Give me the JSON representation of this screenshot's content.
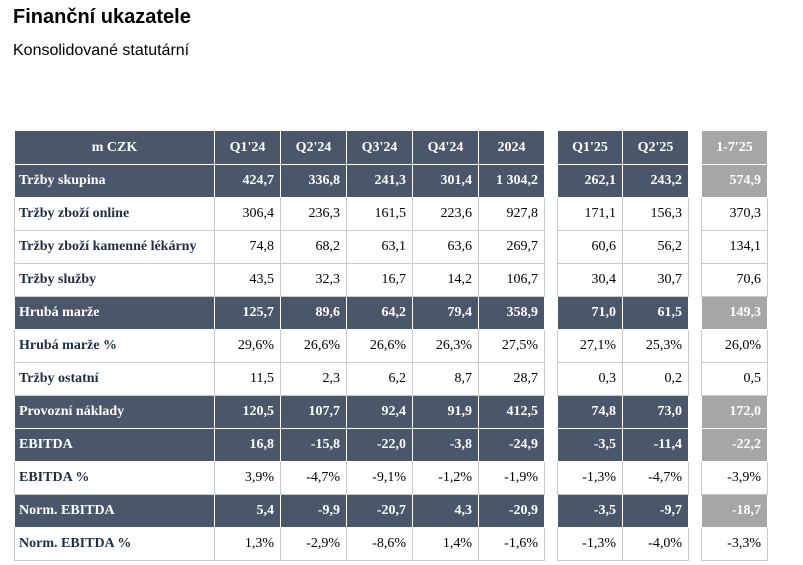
{
  "title": "Finanční ukazatele",
  "subtitle": "Konsolidované statutární",
  "table": {
    "headers": [
      "m CZK",
      "Q1'24",
      "Q2'24",
      "Q3'24",
      "Q4'24",
      "2024",
      "Q1'25",
      "Q2'25",
      "1-7'25"
    ],
    "rows": [
      {
        "label": "Tržby skupina",
        "style": "dark",
        "values": [
          "424,7",
          "336,8",
          "241,3",
          "301,4",
          "1 304,2",
          "262,1",
          "243,2",
          "574,9"
        ]
      },
      {
        "label": "Tržby zboží online",
        "style": "light",
        "values": [
          "306,4",
          "236,3",
          "161,5",
          "223,6",
          "927,8",
          "171,1",
          "156,3",
          "370,3"
        ]
      },
      {
        "label": "Tržby zboží kamenné lékárny",
        "style": "light",
        "values": [
          "74,8",
          "68,2",
          "63,1",
          "63,6",
          "269,7",
          "60,6",
          "56,2",
          "134,1"
        ]
      },
      {
        "label": "Tržby služby",
        "style": "light",
        "values": [
          "43,5",
          "32,3",
          "16,7",
          "14,2",
          "106,7",
          "30,4",
          "30,7",
          "70,6"
        ]
      },
      {
        "label": "Hrubá marže",
        "style": "dark",
        "values": [
          "125,7",
          "89,6",
          "64,2",
          "79,4",
          "358,9",
          "71,0",
          "61,5",
          "149,3"
        ]
      },
      {
        "label": "Hrubá marže %",
        "style": "light",
        "values": [
          "29,6%",
          "26,6%",
          "26,6%",
          "26,3%",
          "27,5%",
          "27,1%",
          "25,3%",
          "26,0%"
        ]
      },
      {
        "label": "Tržby ostatní",
        "style": "light",
        "values": [
          "11,5",
          "2,3",
          "6,2",
          "8,7",
          "28,7",
          "0,3",
          "0,2",
          "0,5"
        ]
      },
      {
        "label": "Provozní náklady",
        "style": "dark",
        "values": [
          "120,5",
          "107,7",
          "92,4",
          "91,9",
          "412,5",
          "74,8",
          "73,0",
          "172,0"
        ]
      },
      {
        "label": "EBITDA",
        "style": "dark",
        "values": [
          "16,8",
          "-15,8",
          "-22,0",
          "-3,8",
          "-24,9",
          "-3,5",
          "-11,4",
          "-22,2"
        ]
      },
      {
        "label": "EBITDA %",
        "style": "light",
        "values": [
          "3,9%",
          "-4,7%",
          "-9,1%",
          "-1,2%",
          "-1,9%",
          "-1,3%",
          "-4,7%",
          "-3,9%"
        ]
      },
      {
        "label": "Norm. EBITDA",
        "style": "dark",
        "values": [
          "5,4",
          "-9,9",
          "-20,7",
          "4,3",
          "-20,9",
          "-3,5",
          "-9,7",
          "-18,7"
        ]
      },
      {
        "label": "Norm. EBITDA %",
        "style": "light",
        "values": [
          "1,3%",
          "-2,9%",
          "-8,6%",
          "1,4%",
          "-1,6%",
          "-1,3%",
          "-4,0%",
          "-3,3%"
        ]
      }
    ]
  }
}
